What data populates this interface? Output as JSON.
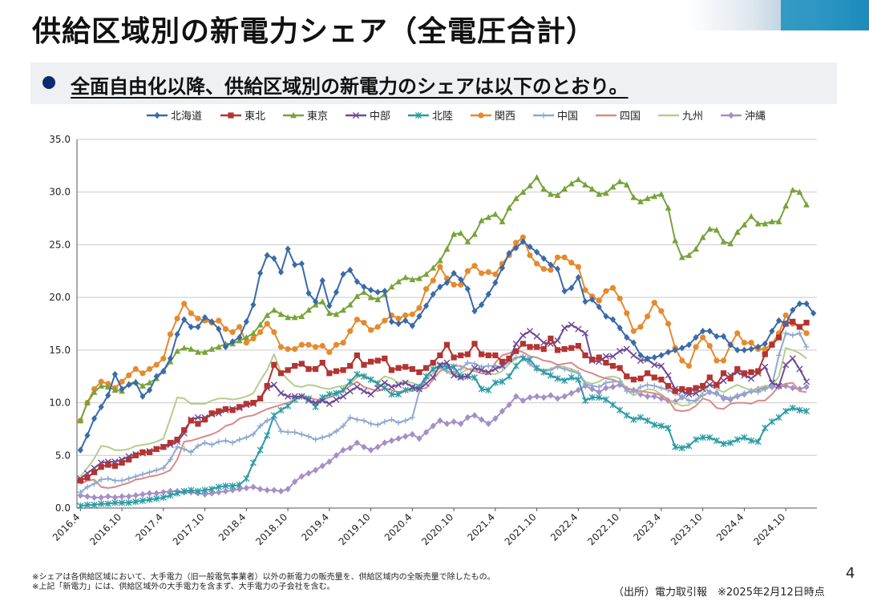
{
  "page": {
    "title": "供給区域別の新電力シェア（全電圧合計）",
    "subtitle": "全面自由化以降、供給区域別の新電力のシェアは以下のとおり。",
    "notes": [
      "※シェアは各供給区域において、大手電力（旧一般電気事業者）以外の新電力の販売量を、供給区域内の全販売量で除したもの。",
      "※上記「新電力」には、供給区域外の大手電力を含まず、大手電力の子会社を含む。"
    ],
    "source": "（出所）電力取引報　※2025年2月12日時点",
    "page_number": "4"
  },
  "chart_data": {
    "type": "line",
    "ylim": [
      0,
      35
    ],
    "yticks": [
      "0.0",
      "5.0",
      "10.0",
      "15.0",
      "20.0",
      "25.0",
      "30.0",
      "35.0"
    ],
    "xtick_labels": [
      "2016.4",
      "2016.10",
      "2017.4",
      "2017.10",
      "2018.4",
      "2018.10",
      "2019.4",
      "2019.10",
      "2020.4",
      "2020.10",
      "2021.4",
      "2021.10",
      "2022.4",
      "2022.10",
      "2023.4",
      "2023.10",
      "2024.4",
      "2024.10"
    ],
    "grid": true,
    "legend_position": "top",
    "series": [
      {
        "name": "北海道",
        "color": "#3a6aa8",
        "marker": "diamond",
        "values": [
          5.5,
          6.9,
          8.5,
          9.6,
          10.7,
          12.7,
          11.3,
          11.7,
          11.9,
          10.6,
          11.2,
          12.5,
          13.0,
          14.2,
          16.5,
          17.9,
          17.2,
          17.2,
          18.1,
          17.7,
          17.0,
          15.3,
          15.8,
          16.2,
          17.7,
          19.3,
          22.3,
          24.0,
          23.7,
          22.4,
          24.6,
          23.1,
          23.2,
          20.4,
          19.6,
          21.6,
          19.2,
          20.5,
          22.2,
          22.6,
          21.5,
          21.0,
          20.7,
          20.5,
          20.6,
          17.7,
          17.5,
          17.8,
          17.3,
          18.2,
          19.2,
          20.3,
          21.0,
          21.4,
          22.3,
          21.7,
          20.8,
          18.7,
          19.3,
          20.3,
          21.4,
          22.8,
          24.2,
          24.7,
          25.3,
          24.8,
          24.3,
          23.7,
          23.1,
          22.7,
          20.6,
          20.9,
          21.9,
          19.6,
          19.8,
          19.1,
          18.2,
          17.9,
          17.1,
          16.2,
          15.7,
          14.5,
          14.2,
          14.3,
          14.5,
          14.8,
          15.0,
          15.2,
          15.5,
          16.2,
          16.8,
          16.8,
          16.3,
          16.3,
          15.5,
          15.0,
          15.0,
          15.1,
          15.3,
          15.6,
          16.8,
          17.8,
          17.5,
          18.8,
          19.4,
          19.4,
          18.5
        ]
      },
      {
        "name": "東北",
        "color": "#b33431",
        "marker": "square",
        "values": [
          2.6,
          2.9,
          3.4,
          3.9,
          4.1,
          4.0,
          4.3,
          4.6,
          5.0,
          5.3,
          5.3,
          5.6,
          5.8,
          6.2,
          6.5,
          7.4,
          8.3,
          8.0,
          8.4,
          9.0,
          9.2,
          9.4,
          9.3,
          9.6,
          9.9,
          10.0,
          10.4,
          11.6,
          13.6,
          12.8,
          13.1,
          13.5,
          13.7,
          13.2,
          13.2,
          13.8,
          12.8,
          13.0,
          13.1,
          13.5,
          14.5,
          13.6,
          13.9,
          14.0,
          14.2,
          13.1,
          13.3,
          13.4,
          13.2,
          12.9,
          13.3,
          13.8,
          14.5,
          15.5,
          14.3,
          14.5,
          14.6,
          15.6,
          14.6,
          14.5,
          14.5,
          13.9,
          14.2,
          14.9,
          15.6,
          15.3,
          15.3,
          15.1,
          16.1,
          15.0,
          15.1,
          15.2,
          15.4,
          14.5,
          14.1,
          14.3,
          13.8,
          13.5,
          13.3,
          12.5,
          12.2,
          12.3,
          12.8,
          12.4,
          12.2,
          11.6,
          11.1,
          11.3,
          11.2,
          11.4,
          11.6,
          12.4,
          11.7,
          12.8,
          12.3,
          13.2,
          12.8,
          12.9,
          13.0,
          14.6,
          15.5,
          16.2,
          17.5,
          17.7,
          17.2,
          17.6
        ]
      },
      {
        "name": "東京",
        "color": "#77a33a",
        "marker": "triangle",
        "values": [
          8.3,
          10.0,
          11.0,
          11.6,
          11.5,
          11.2,
          11.1,
          11.8,
          12.0,
          11.6,
          11.9,
          12.3,
          13.0,
          13.9,
          14.9,
          15.2,
          15.1,
          14.8,
          14.8,
          15.1,
          15.3,
          15.6,
          15.6,
          15.9,
          16.2,
          16.6,
          17.4,
          18.3,
          18.8,
          18.4,
          18.1,
          18.1,
          18.2,
          18.8,
          19.3,
          19.6,
          18.5,
          18.4,
          18.8,
          19.3,
          20.1,
          20.5,
          20.0,
          19.8,
          20.3,
          21.0,
          21.5,
          21.9,
          21.7,
          21.8,
          22.2,
          22.8,
          23.5,
          24.6,
          26.0,
          26.1,
          25.3,
          26.0,
          27.3,
          27.6,
          27.9,
          27.2,
          28.5,
          29.4,
          30.0,
          30.6,
          31.4,
          30.3,
          29.8,
          29.7,
          30.3,
          30.8,
          31.2,
          30.7,
          30.3,
          29.8,
          29.9,
          30.5,
          31.0,
          30.7,
          29.5,
          29.1,
          29.4,
          29.6,
          29.8,
          28.5,
          25.4,
          23.8,
          24.0,
          24.6,
          25.7,
          26.5,
          26.4,
          25.3,
          25.1,
          26.2,
          26.9,
          27.7,
          27.0,
          27.0,
          27.2,
          27.2,
          28.7,
          30.2,
          30.0,
          28.8
        ]
      },
      {
        "name": "中部",
        "color": "#6f4a97",
        "marker": "x",
        "values": [
          2.8,
          3.3,
          3.8,
          4.3,
          4.4,
          4.4,
          4.6,
          4.9,
          5.1,
          5.2,
          5.4,
          5.6,
          5.8,
          6.0,
          6.3,
          7.1,
          8.4,
          8.6,
          8.6,
          8.9,
          9.0,
          9.3,
          9.4,
          9.5,
          9.8,
          9.9,
          10.4,
          11.4,
          11.7,
          10.9,
          10.6,
          10.6,
          10.6,
          10.2,
          10.0,
          10.2,
          9.9,
          10.3,
          10.6,
          11.1,
          11.5,
          11.1,
          10.8,
          11.4,
          11.9,
          11.5,
          11.7,
          11.9,
          11.5,
          11.3,
          11.8,
          12.4,
          13.6,
          13.8,
          12.6,
          12.4,
          12.5,
          13.3,
          13.1,
          12.9,
          13.2,
          13.5,
          14.1,
          15.6,
          16.4,
          16.8,
          16.3,
          15.7,
          15.6,
          15.9,
          17.1,
          17.4,
          17.0,
          16.6,
          14.0,
          13.9,
          14.4,
          14.4,
          14.9,
          15.1,
          14.5,
          14.0,
          14.1,
          13.6,
          13.5,
          12.6,
          11.3,
          11.1,
          10.8,
          10.9,
          11.3,
          11.7,
          11.6,
          12.1,
          12.6,
          12.9,
          12.6,
          12.3,
          12.8,
          13.4,
          11.9,
          11.6,
          13.6,
          14.2,
          13.2,
          12.0
        ]
      },
      {
        "name": "北陸",
        "color": "#2a9ba5",
        "marker": "star",
        "values": [
          0.2,
          0.3,
          0.3,
          0.4,
          0.4,
          0.5,
          0.5,
          0.5,
          0.6,
          0.7,
          0.8,
          0.9,
          1.0,
          1.2,
          1.4,
          1.6,
          1.7,
          1.6,
          1.7,
          1.8,
          2.0,
          2.1,
          2.1,
          2.2,
          2.8,
          4.3,
          5.5,
          6.9,
          8.8,
          9.3,
          9.7,
          10.3,
          10.6,
          10.4,
          9.6,
          10.5,
          10.8,
          10.9,
          11.2,
          12.0,
          12.7,
          12.5,
          12.2,
          11.8,
          11.4,
          10.8,
          10.8,
          11.2,
          11.4,
          11.5,
          12.5,
          13.2,
          13.5,
          13.4,
          13.4,
          12.5,
          12.5,
          12.4,
          11.3,
          11.2,
          11.9,
          12.0,
          12.5,
          13.5,
          14.2,
          14.1,
          13.3,
          12.9,
          12.6,
          12.3,
          12.1,
          12.4,
          12.2,
          10.2,
          10.5,
          10.5,
          10.3,
          9.8,
          9.3,
          8.8,
          8.4,
          8.6,
          8.3,
          7.9,
          7.8,
          7.6,
          5.8,
          5.7,
          5.9,
          6.5,
          6.7,
          6.7,
          6.4,
          6.1,
          6.2,
          6.5,
          6.7,
          6.4,
          6.3,
          7.6,
          8.2,
          8.6,
          9.2,
          9.5,
          9.3,
          9.2
        ]
      },
      {
        "name": "関西",
        "color": "#e58a2e",
        "marker": "circle",
        "values": [
          8.3,
          10.0,
          11.3,
          12.0,
          11.8,
          11.4,
          12.0,
          12.6,
          13.2,
          12.8,
          13.2,
          13.6,
          14.2,
          16.5,
          18.0,
          19.4,
          18.5,
          18.0,
          17.8,
          17.6,
          17.8,
          17.0,
          16.7,
          17.2,
          15.7,
          16.1,
          16.7,
          17.5,
          16.7,
          15.3,
          15.1,
          15.1,
          15.5,
          15.5,
          15.3,
          15.4,
          14.8,
          15.5,
          15.7,
          16.8,
          17.9,
          17.6,
          16.9,
          17.2,
          17.8,
          18.3,
          18.0,
          18.3,
          18.4,
          19.0,
          20.8,
          21.6,
          22.9,
          21.8,
          21.2,
          21.2,
          22.5,
          23.0,
          22.3,
          22.4,
          22.2,
          23.2,
          24.0,
          25.2,
          25.7,
          24.0,
          23.2,
          22.7,
          22.6,
          23.8,
          23.8,
          23.3,
          22.9,
          20.7,
          20.1,
          19.7,
          20.6,
          20.9,
          19.9,
          18.5,
          16.8,
          17.2,
          18.2,
          19.5,
          18.7,
          17.5,
          15.2,
          14.0,
          13.5,
          15.3,
          16.2,
          15.4,
          14.0,
          14.0,
          15.5,
          16.6,
          15.7,
          15.7,
          15.1,
          15.1,
          15.6,
          16.6,
          18.3,
          17.5,
          17.2,
          16.6
        ]
      },
      {
        "name": "中国",
        "color": "#8ea9d1",
        "marker": "plus",
        "values": [
          1.5,
          2.0,
          2.3,
          2.7,
          2.8,
          2.6,
          2.6,
          2.8,
          3.0,
          3.2,
          3.4,
          3.6,
          3.8,
          4.6,
          5.8,
          5.6,
          5.3,
          5.9,
          6.2,
          6.0,
          6.3,
          6.4,
          6.2,
          6.5,
          6.7,
          7.0,
          7.8,
          8.3,
          8.6,
          7.3,
          7.2,
          7.2,
          7.0,
          6.8,
          6.5,
          6.7,
          6.9,
          7.3,
          7.8,
          8.6,
          8.4,
          8.3,
          8.0,
          7.9,
          8.2,
          8.4,
          8.1,
          8.3,
          8.6,
          11.1,
          12.3,
          13.2,
          13.5,
          13.0,
          12.9,
          13.2,
          13.8,
          13.7,
          13.4,
          13.5,
          13.5,
          13.4,
          13.9,
          14.3,
          14.4,
          13.7,
          13.1,
          13.0,
          13.1,
          13.4,
          13.2,
          13.0,
          12.8,
          11.8,
          11.6,
          11.5,
          11.9,
          12.0,
          12.0,
          11.1,
          11.0,
          11.5,
          11.7,
          11.6,
          11.4,
          11.2,
          10.9,
          10.6,
          10.2,
          10.2,
          10.7,
          11.0,
          10.8,
          10.6,
          10.4,
          10.7,
          10.9,
          11.1,
          11.0,
          11.3,
          11.6,
          14.5,
          16.6,
          16.4,
          16.6,
          15.3
        ]
      },
      {
        "name": "四国",
        "color": "#d98a86",
        "marker": "none",
        "values": [
          2.3,
          2.6,
          2.7,
          2.0,
          1.9,
          2.0,
          2.2,
          2.4,
          2.7,
          2.8,
          3.0,
          3.1,
          3.3,
          3.6,
          4.6,
          6.3,
          6.4,
          6.6,
          6.8,
          7.0,
          7.3,
          7.8,
          8.0,
          8.5,
          8.7,
          8.8,
          9.1,
          9.4,
          9.6,
          9.8,
          10.0,
          10.3,
          10.7,
          10.5,
          10.3,
          10.3,
          10.5,
          10.8,
          11.1,
          11.6,
          12.0,
          11.5,
          11.3,
          11.1,
          11.4,
          11.2,
          11.0,
          11.2,
          11.1,
          11.3,
          11.4,
          12.2,
          13.0,
          13.3,
          13.5,
          13.5,
          13.2,
          13.0,
          12.8,
          12.7,
          13.8,
          14.5,
          14.7,
          15.0,
          14.8,
          14.4,
          14.3,
          14.0,
          13.9,
          13.6,
          13.7,
          13.8,
          13.3,
          13.0,
          12.8,
          12.5,
          12.3,
          12.2,
          11.9,
          11.4,
          11.2,
          11.1,
          11.0,
          10.9,
          10.7,
          10.3,
          9.3,
          9.2,
          9.3,
          9.7,
          10.4,
          10.2,
          9.5,
          9.4,
          9.9,
          10.0,
          10.0,
          9.9,
          10.2,
          10.2,
          10.8,
          11.6,
          11.8,
          11.9,
          11.1,
          11.0
        ]
      },
      {
        "name": "九州",
        "color": "#b5cd8d",
        "marker": "none",
        "values": [
          3.0,
          3.8,
          4.7,
          5.9,
          5.8,
          5.5,
          5.5,
          5.6,
          5.9,
          6.0,
          6.1,
          6.3,
          6.6,
          8.5,
          10.5,
          10.4,
          9.9,
          9.9,
          9.9,
          10.2,
          10.4,
          10.4,
          10.3,
          10.4,
          10.6,
          10.9,
          12.1,
          13.1,
          14.6,
          12.9,
          12.2,
          11.6,
          11.5,
          11.7,
          11.6,
          11.4,
          11.3,
          11.5,
          11.6,
          11.8,
          12.4,
          12.7,
          12.2,
          12.0,
          12.5,
          12.3,
          11.9,
          12.0,
          11.9,
          11.6,
          12.2,
          12.8,
          13.3,
          12.9,
          12.6,
          12.8,
          13.2,
          13.3,
          13.0,
          12.8,
          12.7,
          13.0,
          13.7,
          14.2,
          14.4,
          13.6,
          13.3,
          13.1,
          13.2,
          13.5,
          13.4,
          13.2,
          12.9,
          12.0,
          11.8,
          12.0,
          12.4,
          12.5,
          12.3,
          11.2,
          10.7,
          11.0,
          11.3,
          11.2,
          10.8,
          10.3,
          10.0,
          9.7,
          9.8,
          10.2,
          11.0,
          11.7,
          11.3,
          11.0,
          11.4,
          11.7,
          11.4,
          11.2,
          11.4,
          11.6,
          11.6,
          12.5,
          15.2,
          15.0,
          14.7,
          14.2
        ]
      },
      {
        "name": "沖縄",
        "color": "#a48fc6",
        "marker": "diamond",
        "values": [
          1.2,
          1.1,
          1.0,
          1.0,
          1.1,
          1.0,
          1.1,
          1.1,
          1.2,
          1.3,
          1.4,
          1.4,
          1.5,
          1.6,
          1.6,
          1.5,
          1.5,
          1.4,
          1.3,
          1.4,
          1.5,
          1.6,
          1.7,
          1.8,
          1.9,
          2.0,
          1.8,
          1.7,
          1.7,
          1.6,
          1.8,
          2.5,
          3.0,
          3.3,
          3.6,
          4.0,
          4.4,
          5.0,
          5.5,
          5.7,
          6.2,
          5.8,
          5.5,
          5.8,
          6.2,
          6.4,
          6.6,
          6.8,
          7.0,
          6.6,
          7.2,
          7.8,
          8.3,
          8.0,
          8.2,
          8.0,
          8.6,
          8.8,
          8.4,
          8.0,
          8.5,
          9.2,
          9.8,
          10.6,
          10.2,
          10.5,
          10.6,
          10.5,
          10.7,
          10.4,
          10.6,
          10.9,
          11.2,
          11.6,
          11.3,
          11.0,
          11.4,
          11.5,
          11.7,
          11.3,
          11.2,
          10.8,
          10.6,
          10.6,
          10.4,
          10.2,
          10.1,
          10.5,
          11.0,
          11.3,
          11.5,
          11.0,
          10.9,
          10.4,
          10.3,
          10.6,
          10.8,
          11.1,
          11.3,
          11.4,
          11.5,
          11.5,
          11.6,
          11.4,
          11.3,
          11.5
        ]
      }
    ]
  }
}
